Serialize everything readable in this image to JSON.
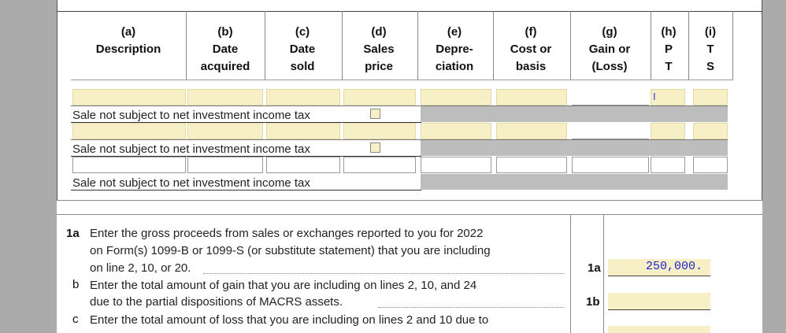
{
  "columns": [
    {
      "letter": "(a)",
      "line1": "Description",
      "line2": ""
    },
    {
      "letter": "(b)",
      "line1": "Date",
      "line2": "acquired"
    },
    {
      "letter": "(c)",
      "line1": "Date",
      "line2": "sold"
    },
    {
      "letter": "(d)",
      "line1": "Sales",
      "line2": "price"
    },
    {
      "letter": "(e)",
      "line1": "Depre-",
      "line2": "ciation"
    },
    {
      "letter": "(f)",
      "line1": "Cost or",
      "line2": "basis"
    },
    {
      "letter": "(g)",
      "line1": "Gain or",
      "line2": "(Loss)"
    },
    {
      "letter": "(h)",
      "line1": "P",
      "line2": "T"
    },
    {
      "letter": "(i)",
      "line1": "T",
      "line2": "S"
    }
  ],
  "sale_label": "Sale not subject to net investment income tax",
  "cursor_text": "I",
  "lines": {
    "l1a_num": "1a",
    "l1a_text1": "Enter the gross proceeds from sales or exchanges reported to you for 2022",
    "l1a_text2": "on Form(s) 1099-B or 1099-S (or substitute statement) that you are including",
    "l1a_text3": "on line 2, 10, or 20.",
    "l1a_label": "1a",
    "l1a_value": "250,000.",
    "l1b_num": "b",
    "l1b_text1": "Enter the total amount of gain that you are including on lines 2, 10, and 24",
    "l1b_text2": "due to the partial dispositions of MACRS assets.",
    "l1b_label": "1b",
    "l1b_value": "",
    "l1c_num": "c",
    "l1c_text1": "Enter the total amount of loss that you are including on lines 2 and 10 due to"
  },
  "colors": {
    "field_yellow": "#f7efc5",
    "gray_fill": "#bdbdbd",
    "value_blue": "#2222cc"
  }
}
